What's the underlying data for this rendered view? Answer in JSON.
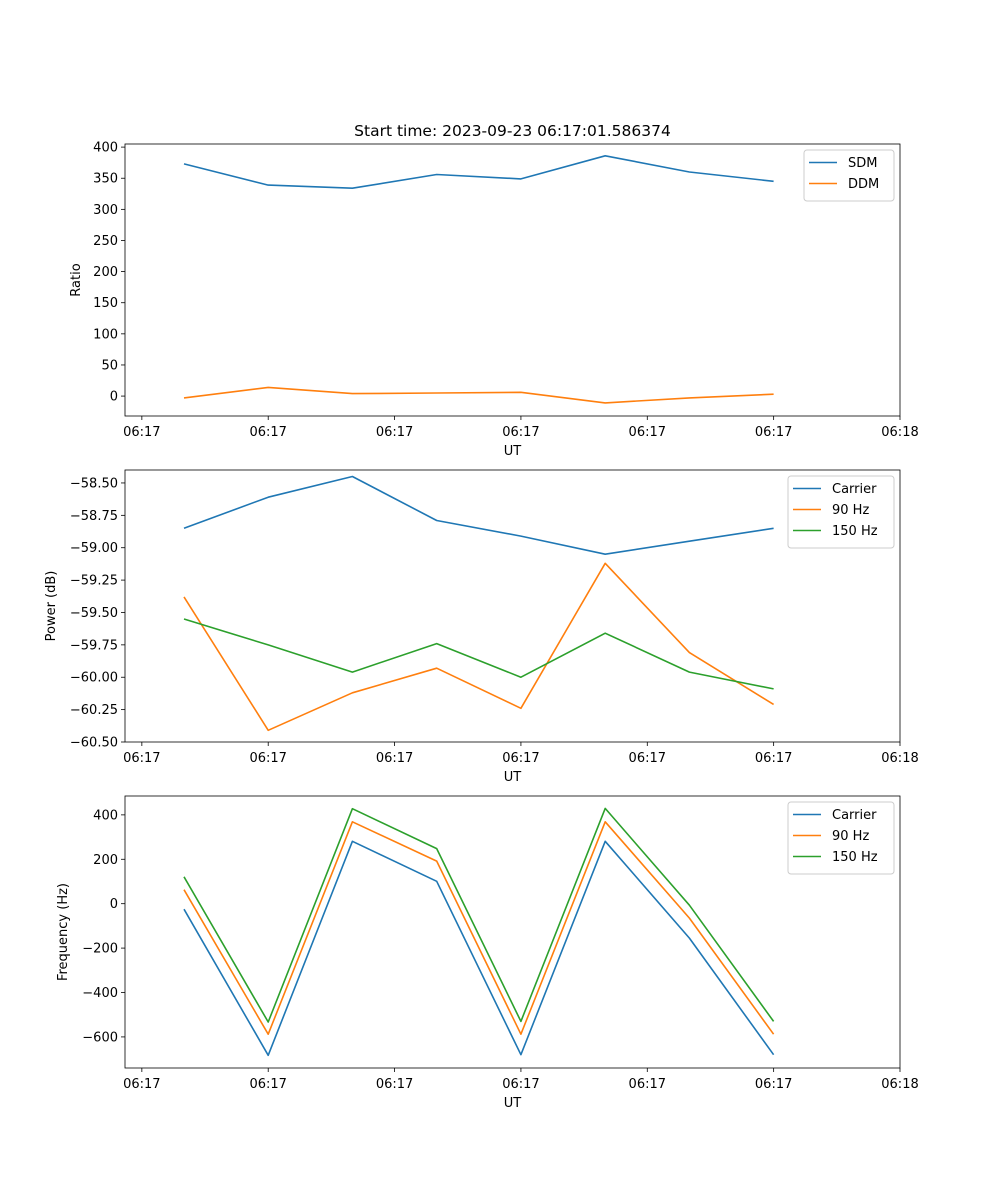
{
  "figure_title": "Start time: 2023-09-23 06:17:01.586374",
  "colors": {
    "blue": "#1f77b4",
    "orange": "#ff7f0e",
    "green": "#2ca02c"
  },
  "chart_data": [
    {
      "type": "line",
      "title": "Start time: 2023-09-23 06:17:01.586374",
      "xlabel": "UT",
      "ylabel": "Ratio",
      "x": [
        1,
        2,
        3,
        4,
        5,
        6,
        7,
        8
      ],
      "xlim": [
        0.3,
        9.5
      ],
      "xticks": [
        0.5,
        2,
        3.5,
        5,
        6.5,
        8,
        9.5
      ],
      "xtick_labels": [
        "06:17",
        "06:17",
        "06:17",
        "06:17",
        "06:17",
        "06:17",
        "06:18"
      ],
      "ylim": [
        -32,
        405
      ],
      "yticks": [
        0,
        50,
        100,
        150,
        200,
        250,
        300,
        350,
        400
      ],
      "ytick_labels": [
        "0",
        "50",
        "100",
        "150",
        "200",
        "250",
        "300",
        "350",
        "400"
      ],
      "legend_position": "top-right",
      "series": [
        {
          "name": "SDM",
          "color": "#1f77b4",
          "values": [
            373,
            339,
            334,
            356,
            349,
            386,
            360,
            345
          ]
        },
        {
          "name": "DDM",
          "color": "#ff7f0e",
          "values": [
            -3,
            14,
            4,
            5,
            6,
            -11,
            -3,
            3
          ]
        }
      ]
    },
    {
      "type": "line",
      "title": "",
      "xlabel": "UT",
      "ylabel": "Power (dB)",
      "x": [
        1,
        2,
        3,
        4,
        5,
        6,
        7,
        8
      ],
      "xlim": [
        0.3,
        9.5
      ],
      "xticks": [
        0.5,
        2,
        3.5,
        5,
        6.5,
        8,
        9.5
      ],
      "xtick_labels": [
        "06:17",
        "06:17",
        "06:17",
        "06:17",
        "06:17",
        "06:17",
        "06:18"
      ],
      "ylim": [
        -60.5,
        -58.4
      ],
      "yticks": [
        -60.5,
        -60.25,
        -60.0,
        -59.75,
        -59.5,
        -59.25,
        -59.0,
        -58.75,
        -58.5
      ],
      "ytick_labels": [
        "−60.50",
        "−60.25",
        "−60.00",
        "−59.75",
        "−59.50",
        "−59.25",
        "−59.00",
        "−58.75",
        "−58.50"
      ],
      "legend_position": "top-right",
      "series": [
        {
          "name": "Carrier",
          "color": "#1f77b4",
          "values": [
            -58.85,
            -58.61,
            -58.45,
            -58.79,
            -58.91,
            -59.05,
            -58.95,
            -58.85
          ]
        },
        {
          "name": "90 Hz",
          "color": "#ff7f0e",
          "values": [
            -59.38,
            -60.41,
            -60.12,
            -59.93,
            -60.24,
            -59.12,
            -59.81,
            -60.21
          ]
        },
        {
          "name": "150 Hz",
          "color": "#2ca02c",
          "values": [
            -59.55,
            -59.75,
            -59.96,
            -59.74,
            -60.0,
            -59.66,
            -59.96,
            -60.09
          ]
        }
      ]
    },
    {
      "type": "line",
      "title": "",
      "xlabel": "UT",
      "ylabel": "Frequency (Hz)",
      "x": [
        1,
        2,
        3,
        4,
        5,
        6,
        7,
        8
      ],
      "xlim": [
        0.3,
        9.5
      ],
      "xticks": [
        0.5,
        2,
        3.5,
        5,
        6.5,
        8,
        9.5
      ],
      "xtick_labels": [
        "06:17",
        "06:17",
        "06:17",
        "06:17",
        "06:17",
        "06:17",
        "06:18"
      ],
      "ylim": [
        -740,
        485
      ],
      "yticks": [
        -600,
        -400,
        -200,
        0,
        200,
        400
      ],
      "ytick_labels": [
        "−600",
        "−400",
        "−200",
        "0",
        "200",
        "400"
      ],
      "legend_position": "top-right",
      "series": [
        {
          "name": "Carrier",
          "color": "#1f77b4",
          "values": [
            -25,
            -683,
            281,
            101,
            -680,
            281,
            -155,
            -680
          ]
        },
        {
          "name": "90 Hz",
          "color": "#ff7f0e",
          "values": [
            63,
            -588,
            369,
            192,
            -588,
            369,
            -65,
            -588
          ]
        },
        {
          "name": "150 Hz",
          "color": "#2ca02c",
          "values": [
            121,
            -533,
            428,
            248,
            -530,
            429,
            -7,
            -530
          ]
        }
      ]
    }
  ]
}
